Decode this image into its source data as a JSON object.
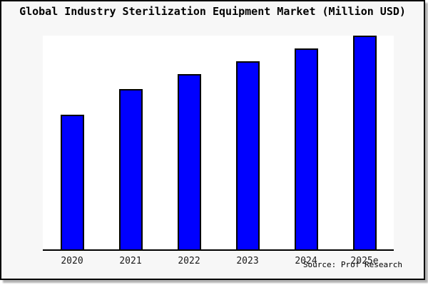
{
  "title": "Global Industry Sterilization Equipment Market (Million USD)",
  "source": "Source: Prof Research",
  "colors": {
    "bar_fill": "#0000FF",
    "bar_border": "#000000",
    "canvas_background": "#F7F7F7",
    "plot_background": "#FFFFFF",
    "axis_line": "#000000",
    "frame_border": "#000000"
  },
  "chart_data": {
    "type": "bar",
    "title": "Global Industry Sterilization Equipment Market (Million USD)",
    "categories": [
      "2020",
      "2021",
      "2022",
      "2023",
      "2024",
      "2025e"
    ],
    "values": [
      63,
      75,
      82,
      88,
      94,
      100
    ],
    "values_note": "y-axis is unlabeled; values are relative index estimates from bar heights, 2025e = 100",
    "xlabel": "",
    "ylabel": "",
    "ylim": [
      0,
      100
    ],
    "grid": false,
    "legend": false,
    "y_axis_visible": false,
    "annotation": "Source: Prof Research"
  }
}
